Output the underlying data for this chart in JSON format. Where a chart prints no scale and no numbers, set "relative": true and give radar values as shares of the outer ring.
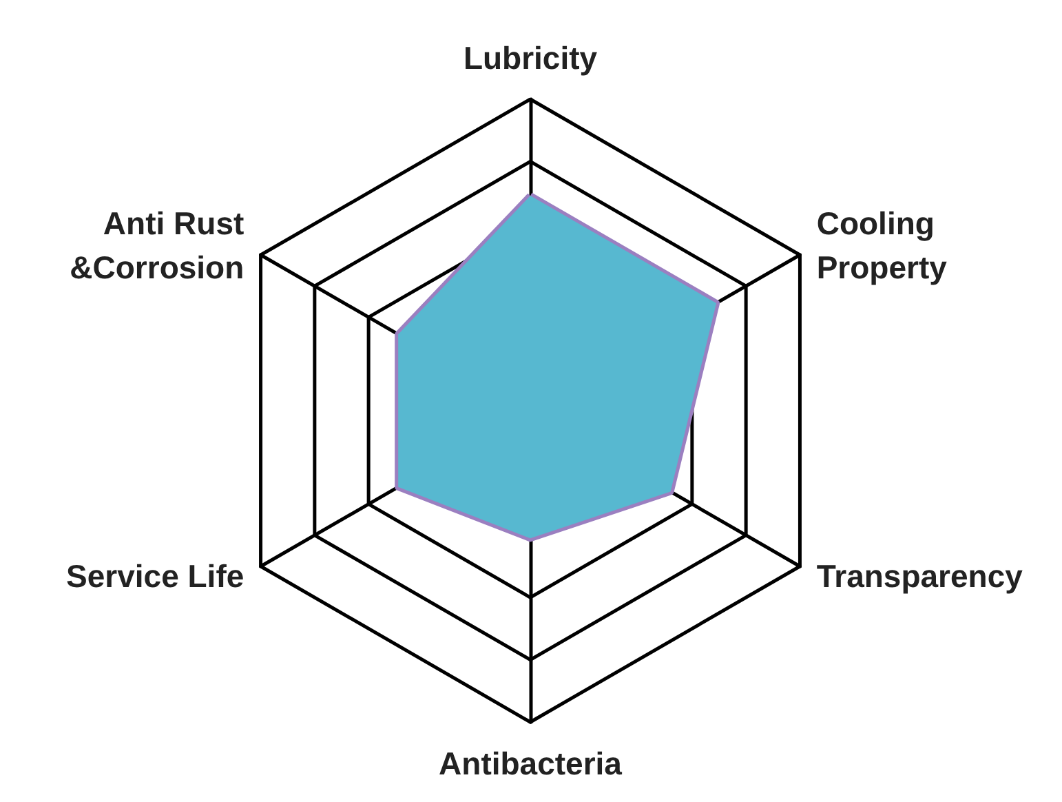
{
  "chart_data": {
    "type": "radar",
    "relative": true,
    "categories": [
      "Lubricity",
      "Cooling\nProperty",
      "Transparency",
      "Antibacteria",
      "Service Life",
      "Anti Rust\n&Corrosion"
    ],
    "series": [
      {
        "color": "#57b8d0",
        "values": [
          0.69,
          0.69,
          0.52,
          0.41,
          0.49,
          0.49
        ]
      }
    ]
  }
}
